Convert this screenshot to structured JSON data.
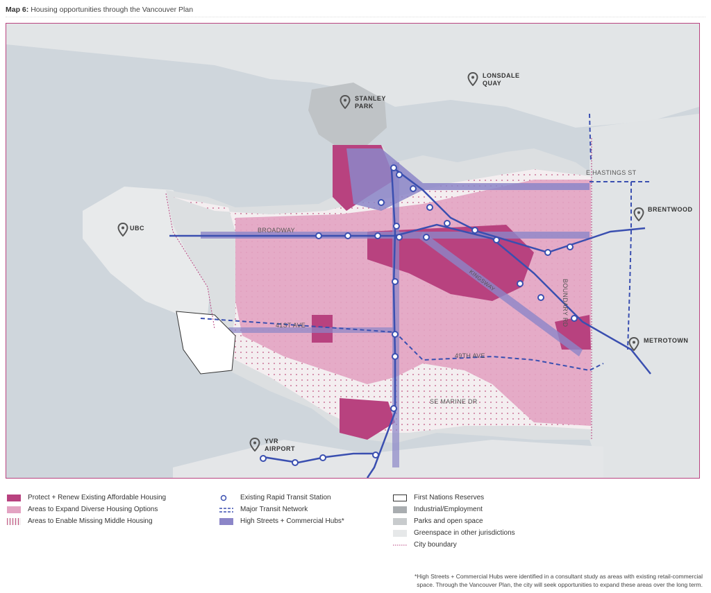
{
  "header": {
    "map_number": "Map 6:",
    "title": "Housing opportunities through the Vancouver Plan"
  },
  "places": {
    "lonsdale": [
      "LONSDALE",
      "QUAY"
    ],
    "stanley": [
      "STANLEY",
      "PARK"
    ],
    "ubc": "UBC",
    "brentwood": "BRENTWOOD",
    "metrotown": "METROTOWN",
    "yvr": [
      "YVR",
      "AIRPORT"
    ]
  },
  "streets": {
    "e_hastings": "E HASTINGS ST",
    "broadway": "BROADWAY",
    "41st": "41ST AVE",
    "49th": "49TH AVE",
    "se_marine": "SE MARINE DR",
    "boundary": "BOUNDARY RD",
    "kingsway": "KINGSWAY"
  },
  "legend": {
    "col1": [
      {
        "label": "Protect + Renew Existing Affordable Housing",
        "icon": "solid-magenta"
      },
      {
        "label": "Areas to Expand Diverse Housing Options",
        "icon": "solid-pink"
      },
      {
        "label": "Areas to Enable Missing Middle Housing",
        "icon": "dotted-pink"
      }
    ],
    "col2": [
      {
        "label": "Existing Rapid Transit Station",
        "icon": "circle"
      },
      {
        "label": "Major Transit Network",
        "icon": "dashed-line"
      },
      {
        "label": "High Streets + Commercial Hubs*",
        "icon": "solid-purple"
      }
    ],
    "col3": [
      {
        "label": "First Nations Reserves",
        "icon": "outline-box"
      },
      {
        "label": "Industrial/Employment",
        "icon": "dark-grey"
      },
      {
        "label": "Parks and open space",
        "icon": "mid-grey"
      },
      {
        "label": "Greenspace in other jurisdictions",
        "icon": "light-grey"
      },
      {
        "label": "City boundary",
        "icon": "dotted-red-line"
      }
    ]
  },
  "footnote": {
    "line1": "*High Streets + Commercial Hubs were identified in a consultant study as areas with existing retail-commercial",
    "line2": "space. Through the Vancouver Plan, the city will seek opportunities to expand these areas over the long term."
  },
  "colors": {
    "magenta": "#b8427f",
    "pink": "#e3a3c2",
    "purple": "#8c86c8",
    "transit": "#3a4fb0",
    "water": "#cfd6dc",
    "land": "#e6e8e9"
  }
}
